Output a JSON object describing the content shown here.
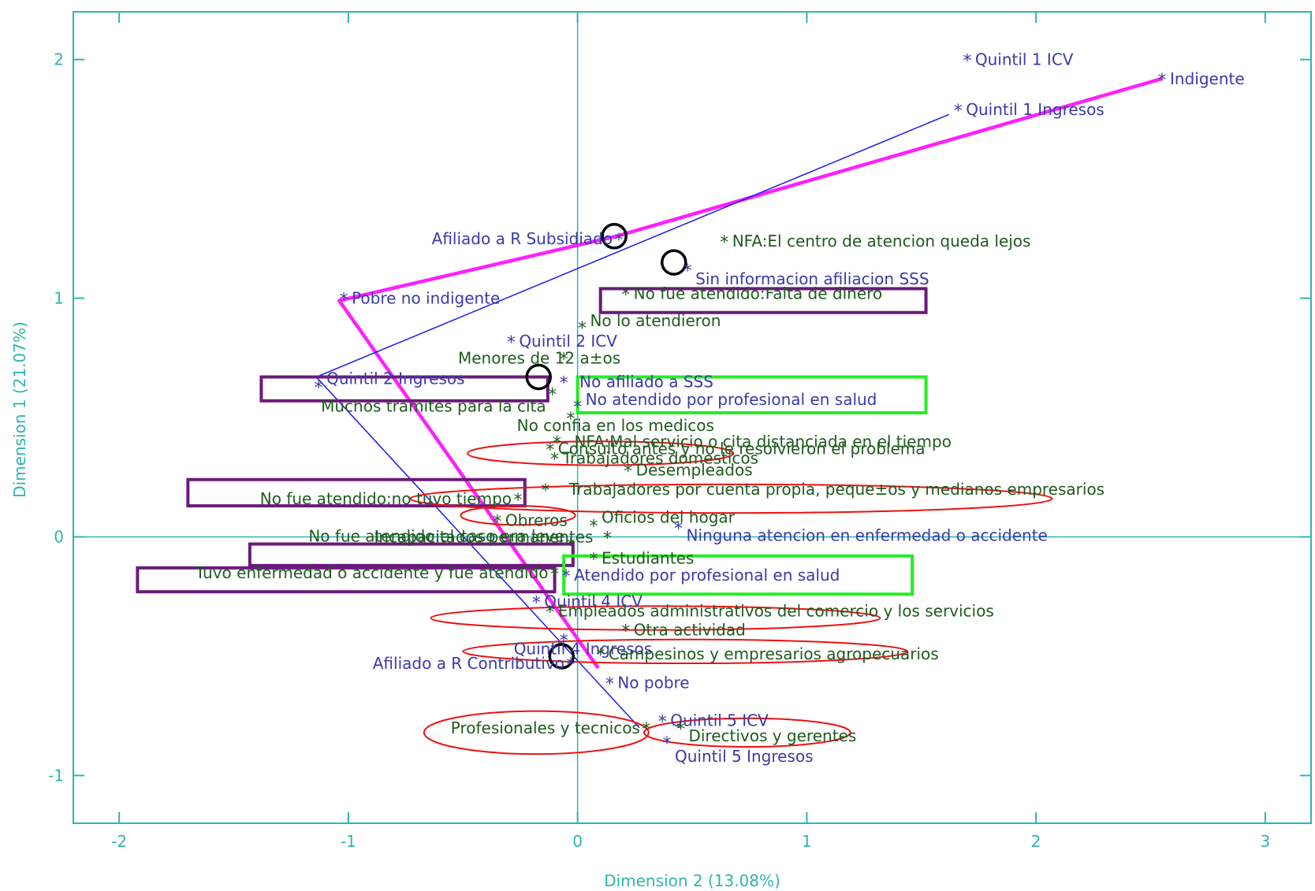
{
  "chart_data": {
    "type": "scatter",
    "title": "",
    "xlabel": "Dimension 2 (13.08%)",
    "ylabel": "Dimension 1 (21.07%)",
    "xlim": [
      -2.2,
      3.2
    ],
    "ylim": [
      -1.2,
      2.2
    ],
    "xticks": [
      -2,
      -1,
      0,
      1,
      2,
      3
    ],
    "xtick_labels": [
      "-2",
      "-1",
      "0",
      "1",
      "2",
      "3"
    ],
    "yticks": [
      -1,
      0,
      1,
      2
    ],
    "ytick_labels": [
      "-1",
      "0",
      "1",
      "2"
    ],
    "grid": false,
    "reference_lines": [
      {
        "axis": "x",
        "value": 0
      },
      {
        "axis": "y",
        "value": 0
      }
    ],
    "colors": {
      "frame": "#2fb5b0",
      "blue_points": "#3a3aa8",
      "green_points": "#1f5a1f",
      "magenta_line": "#ff1fff",
      "blue_line": "#1a1aee",
      "purple_box": "#6a1a7a",
      "green_box": "#22ee22",
      "red_ellipse": "#ee1111",
      "circle": "#000000"
    },
    "points": [
      {
        "label": "Quintil  1 ICV",
        "x": 1.7,
        "y": 2.0,
        "group": "blue"
      },
      {
        "label": "Indigente",
        "x": 2.55,
        "y": 1.92,
        "group": "blue"
      },
      {
        "label": "Quintil  1 Ingresos",
        "x": 1.66,
        "y": 1.79,
        "group": "blue"
      },
      {
        "label": "Afiliado a R Subsidiado",
        "x": 0.18,
        "y": 1.25,
        "group": "blue"
      },
      {
        "label": "NFA:El  centro de atencion queda lejos",
        "x": 0.64,
        "y": 1.24,
        "group": "green"
      },
      {
        "label": "Sin informacion afiliacion SSS",
        "x": 0.48,
        "y": 1.12,
        "group": "blue"
      },
      {
        "label": "Pobre no indigente",
        "x": -1.02,
        "y": 1.0,
        "group": "blue"
      },
      {
        "label": "No fue atendido:Falta de dinero",
        "x": 0.21,
        "y": 1.02,
        "group": "green"
      },
      {
        "label": "No lo atendieron",
        "x": 0.02,
        "y": 0.88,
        "group": "green"
      },
      {
        "label": "Quintil  2 ICV",
        "x": -0.29,
        "y": 0.82,
        "group": "blue"
      },
      {
        "label": "Menores de 12 a±os",
        "x": -0.06,
        "y": 0.75,
        "group": "green"
      },
      {
        "label": "No afiliado a SSS",
        "x": -0.06,
        "y": 0.65,
        "group": "blue"
      },
      {
        "label": "Quintil  2 Ingresos",
        "x": -1.13,
        "y": 0.63,
        "group": "blue"
      },
      {
        "label": "Muchos tramites para la cita",
        "x": -0.11,
        "y": 0.6,
        "group": "green"
      },
      {
        "label": "No atendido por profesional en salud",
        "x": 0.0,
        "y": 0.55,
        "group": "blue"
      },
      {
        "label": "No confia en los medicos",
        "x": -0.03,
        "y": 0.5,
        "group": "green"
      },
      {
        "label": "NFA:Mal  servicio o cita distanciada en el tiempo",
        "x": -0.09,
        "y": 0.4,
        "group": "green"
      },
      {
        "label": "Consulto antes y no le resolvieron el problema",
        "x": -0.12,
        "y": 0.37,
        "group": "green"
      },
      {
        "label": "Trabajadores domesticos",
        "x": -0.1,
        "y": 0.33,
        "group": "green"
      },
      {
        "label": "Desempleados",
        "x": 0.22,
        "y": 0.28,
        "group": "green"
      },
      {
        "label": "No fue atendido:no tuvo tiempo",
        "x": -0.26,
        "y": 0.16,
        "group": "green"
      },
      {
        "label": "Trabajadores por cuenta propia, peque±os y medianos empresarios",
        "x": -0.14,
        "y": 0.2,
        "group": "green"
      },
      {
        "label": "Obreros",
        "x": -0.35,
        "y": 0.07,
        "group": "green"
      },
      {
        "label": "Oficios del hogar",
        "x": 0.07,
        "y": 0.05,
        "group": "green"
      },
      {
        "label": "Ninguna atencion en enfermedad o accidente",
        "x": 0.44,
        "y": 0.04,
        "group": "blue"
      },
      {
        "label": "Incapacitados permanentes",
        "x": 0.13,
        "y": 0.0,
        "group": "green"
      },
      {
        "label": "No fue atendido:el caso era leve",
        "x": -0.03,
        "y": -0.03,
        "group": "green"
      },
      {
        "label": "Estudiantes",
        "x": 0.07,
        "y": -0.09,
        "group": "green"
      },
      {
        "label": "Tuvo enfermedad o accidente y fue atendido",
        "x": -0.1,
        "y": -0.15,
        "group": "green"
      },
      {
        "label": "Atendido por profesional en salud",
        "x": -0.05,
        "y": -0.16,
        "group": "blue"
      },
      {
        "label": "Quintil  4 ICV",
        "x": -0.18,
        "y": -0.27,
        "group": "blue"
      },
      {
        "label": "Empleados administrativos del comercio y los servicios",
        "x": -0.12,
        "y": -0.31,
        "group": "green"
      },
      {
        "label": "Otra actividad",
        "x": 0.21,
        "y": -0.39,
        "group": "green"
      },
      {
        "label": "Quintil  4 Ingresos",
        "x": -0.06,
        "y": -0.43,
        "group": "blue"
      },
      {
        "label": "Campesinos y empresarios agropecuarios",
        "x": 0.1,
        "y": -0.49,
        "group": "green"
      },
      {
        "label": "Afiliado a R Contributivo",
        "x": -0.03,
        "y": -0.53,
        "group": "blue"
      },
      {
        "label": "No pobre",
        "x": 0.14,
        "y": -0.61,
        "group": "blue"
      },
      {
        "label": "Quintil  5 ICV",
        "x": 0.37,
        "y": -0.77,
        "group": "blue"
      },
      {
        "label": "Profesionales y tecnicos",
        "x": 0.3,
        "y": -0.8,
        "group": "green"
      },
      {
        "label": "Directivos y gerentes",
        "x": 0.45,
        "y": -0.8,
        "group": "green"
      },
      {
        "label": "Quintil  5 Ingresos",
        "x": 0.39,
        "y": -0.86,
        "group": "blue"
      }
    ],
    "lines": [
      {
        "color": "magenta",
        "points": [
          [
            2.55,
            1.92
          ],
          [
            0.17,
            1.26
          ],
          [
            -1.04,
            0.99
          ],
          [
            0.09,
            -0.55
          ]
        ]
      },
      {
        "color": "blue",
        "points": [
          [
            1.62,
            1.77
          ],
          [
            -1.14,
            0.67
          ],
          [
            0.27,
            -0.8
          ]
        ]
      }
    ],
    "boxes": [
      {
        "color": "purple",
        "x0": 0.1,
        "x1": 1.52,
        "y0": 0.94,
        "y1": 1.04
      },
      {
        "color": "purple",
        "x0": -1.38,
        "x1": -0.13,
        "y0": 0.57,
        "y1": 0.67
      },
      {
        "color": "purple",
        "x0": -1.7,
        "x1": -0.23,
        "y0": 0.13,
        "y1": 0.24
      },
      {
        "color": "purple",
        "x0": -1.43,
        "x1": -0.02,
        "y0": -0.12,
        "y1": -0.03
      },
      {
        "color": "purple",
        "x0": -1.92,
        "x1": -0.1,
        "y0": -0.23,
        "y1": -0.13
      },
      {
        "color": "green",
        "x0": 0.0,
        "x1": 1.52,
        "y0": 0.52,
        "y1": 0.67
      },
      {
        "color": "green",
        "x0": -0.06,
        "x1": 1.46,
        "y0": -0.24,
        "y1": -0.08
      }
    ],
    "ellipses": [
      {
        "color": "red",
        "cx": 0.1,
        "cy": 0.35,
        "rx": 0.58,
        "ry": 0.05
      },
      {
        "color": "red",
        "cx": 0.67,
        "cy": 0.16,
        "rx": 1.4,
        "ry": 0.06
      },
      {
        "color": "red",
        "cx": -0.26,
        "cy": 0.09,
        "rx": 0.25,
        "ry": 0.04
      },
      {
        "color": "red",
        "cx": 0.34,
        "cy": -0.34,
        "rx": 0.98,
        "ry": 0.05
      },
      {
        "color": "red",
        "cx": 0.47,
        "cy": -0.48,
        "rx": 0.97,
        "ry": 0.05
      },
      {
        "color": "red",
        "cx": -0.18,
        "cy": -0.82,
        "rx": 0.49,
        "ry": 0.09
      },
      {
        "color": "red",
        "cx": 0.74,
        "cy": -0.82,
        "rx": 0.45,
        "ry": 0.06
      }
    ],
    "circles": [
      {
        "color": "black",
        "x": 0.16,
        "y": 1.26,
        "r": 0.05
      },
      {
        "color": "black",
        "x": 0.42,
        "y": 1.15,
        "r": 0.05
      },
      {
        "color": "black",
        "x": -0.17,
        "y": 0.67,
        "r": 0.05
      },
      {
        "color": "black",
        "x": -0.07,
        "y": -0.5,
        "r": 0.05
      }
    ]
  }
}
